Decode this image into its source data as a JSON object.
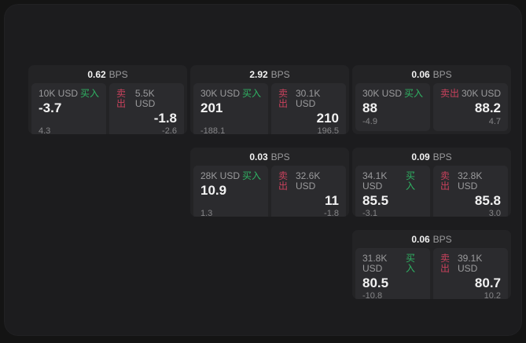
{
  "labels": {
    "bps_unit": "BPS",
    "buy": "买入",
    "sell": "卖出"
  },
  "colors": {
    "outer_bg": "#141414",
    "panel_bg": "#1c1c1e",
    "card_bg": "#232325",
    "tile_bg": "#2b2b2e",
    "buy_green": "#2fb363",
    "sell_red": "#c8415c",
    "value_white": "#f2f2f2",
    "label_gray": "#9b9b9d",
    "muted_gray": "#868688"
  },
  "cards": [
    {
      "bps": "0.62",
      "buy": {
        "amount": "10K USD",
        "price": "-3.7",
        "delta": "4.3"
      },
      "sell": {
        "amount": "5.5K USD",
        "price": "-1.8",
        "delta": "-2.6"
      }
    },
    {
      "bps": "2.92",
      "buy": {
        "amount": "30K USD",
        "price": "201",
        "delta": "-188.1"
      },
      "sell": {
        "amount": "30.1K USD",
        "price": "210",
        "delta": "196.5"
      }
    },
    {
      "bps": "0.06",
      "buy": {
        "amount": "30K USD",
        "price": "88",
        "delta": "-4.9"
      },
      "sell": {
        "amount": "30K USD",
        "price": "88.2",
        "delta": "4.7"
      }
    },
    {
      "bps": "0.03",
      "buy": {
        "amount": "28K USD",
        "price": "10.9",
        "delta": "1.3"
      },
      "sell": {
        "amount": "32.6K USD",
        "price": "11",
        "delta": "-1.8"
      }
    },
    {
      "bps": "0.09",
      "buy": {
        "amount": "34.1K USD",
        "price": "85.5",
        "delta": "-3.1"
      },
      "sell": {
        "amount": "32.8K USD",
        "price": "85.8",
        "delta": "3.0"
      }
    },
    {
      "bps": "0.06",
      "buy": {
        "amount": "31.8K USD",
        "price": "80.5",
        "delta": "-10.8"
      },
      "sell": {
        "amount": "39.1K USD",
        "price": "80.7",
        "delta": "10.2"
      }
    }
  ]
}
